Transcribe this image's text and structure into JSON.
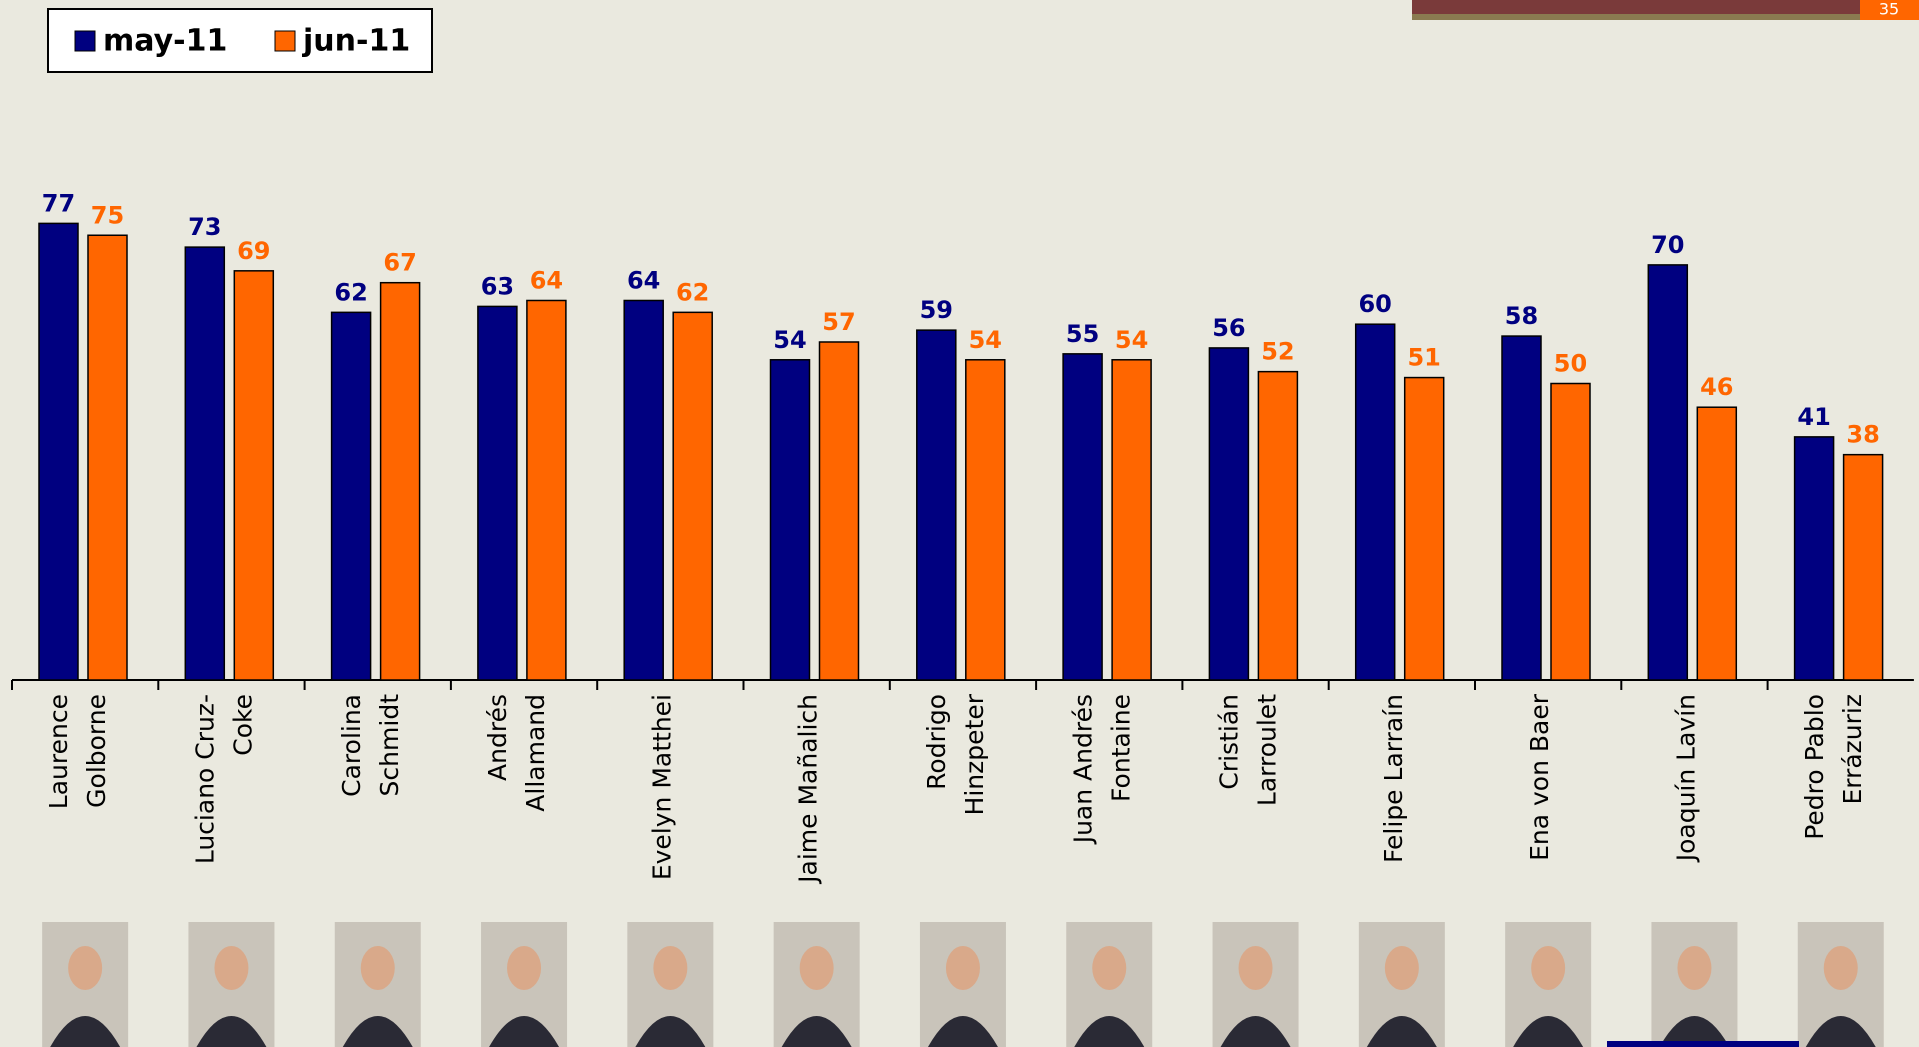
{
  "page_number": "35",
  "chart_data": {
    "type": "bar",
    "categories": [
      "Laurence\nGolborne",
      "Luciano Cruz-\nCoke",
      "Carolina\nSchmidt",
      "Andrés\nAllamand",
      "Evelyn Matthei",
      "Jaime Mañalich",
      "Rodrigo\nHinzpeter",
      "Juan Andrés\nFontaine",
      "Cristián\nLarroulet",
      "Felipe Larraín",
      "Ena von Baer",
      "Joaquín Lavín",
      "Pedro Pablo\nErrázuriz"
    ],
    "series": [
      {
        "name": "may-11",
        "color": "#000080",
        "values": [
          77,
          73,
          62,
          63,
          64,
          54,
          59,
          55,
          56,
          60,
          58,
          70,
          41
        ]
      },
      {
        "name": "jun-11",
        "color": "#ff6600",
        "values": [
          75,
          69,
          67,
          64,
          62,
          57,
          54,
          54,
          52,
          51,
          50,
          46,
          38
        ]
      }
    ],
    "legend": "top-left"
  }
}
